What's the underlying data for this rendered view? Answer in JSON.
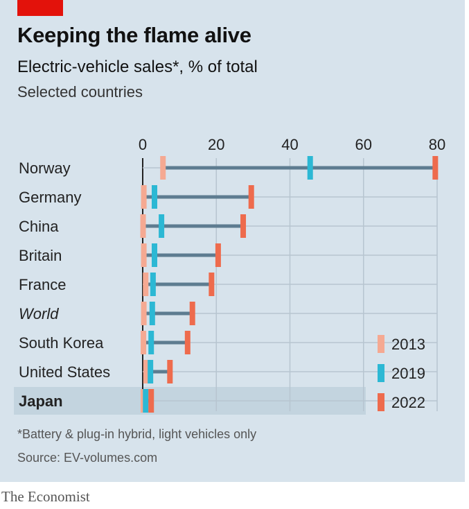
{
  "header": {
    "title": "Keeping the flame alive",
    "subtitle": "Electric-vehicle sales*, % of total",
    "subsubtitle": "Selected countries"
  },
  "footer": {
    "footnote": "*Battery & plug-in hybrid, light vehicles only",
    "source": "Source: EV-volumes.com",
    "publisher": "The Economist"
  },
  "colors": {
    "background": "#d7e3ec",
    "brand_red": "#e3120b",
    "y2013": "#f5a992",
    "y2019": "#2cb8d4",
    "y2022": "#ee6b4d",
    "connector": "#5d7c90",
    "grid": "#b7c5d0",
    "highlight_row": "#c3d4df"
  },
  "chart_data": {
    "type": "dot-range",
    "title": "Keeping the flame alive",
    "subtitle": "Electric-vehicle sales*, % of total",
    "xlim": [
      0,
      80
    ],
    "xticks": [
      0,
      20,
      40,
      60,
      80
    ],
    "grid": true,
    "legend_position": "bottom-right",
    "series_names": [
      "2013",
      "2019",
      "2022"
    ],
    "categories": [
      "Norway",
      "Germany",
      "China",
      "Britain",
      "France",
      "World",
      "South Korea",
      "United States",
      "Japan"
    ],
    "italic_categories": [
      "World"
    ],
    "highlighted_categories": [
      "Japan"
    ],
    "series": [
      {
        "name": "2013",
        "values": [
          5.5,
          0.3,
          0.1,
          0.3,
          0.8,
          0.3,
          0.2,
          0.9,
          0.2
        ]
      },
      {
        "name": "2019",
        "values": [
          45.5,
          3.2,
          5.1,
          3.2,
          2.8,
          2.6,
          2.3,
          2.1,
          0.8
        ]
      },
      {
        "name": "2022",
        "values": [
          79.5,
          29.5,
          27.3,
          20.5,
          18.7,
          13.5,
          12.2,
          7.4,
          2.3
        ]
      }
    ]
  }
}
